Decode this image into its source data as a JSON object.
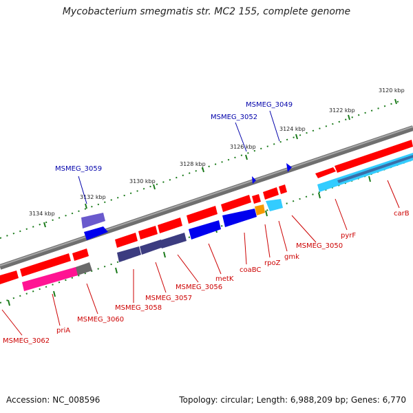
{
  "title": "Mycobacterium smegmatis str. MC2 155, complete genome",
  "footer": {
    "accession": "Accession: NC_008596",
    "stats": "Topology: circular; Length: 6,988,209 bp; Genes: 6,770"
  },
  "colors": {
    "backbone": "#7f7f7f",
    "tick_dots": "#1a7a1a",
    "gene_red": "#ff0000",
    "gene_blue": "#0000ee",
    "gene_navy": "#3c3c80",
    "gene_cyan": "#33ccff",
    "gene_orange": "#f59a00",
    "gene_pink": "#ff1493",
    "gene_gray": "#6a6a6a",
    "label_red": "#cc0000",
    "label_blue": "#0000aa"
  },
  "kbp_ticks": [
    "3120 kbp",
    "3122 kbp",
    "3124 kbp",
    "3126 kbp",
    "3128 kbp",
    "3130 kbp",
    "3132 kbp",
    "3134 kbp"
  ],
  "outer_labels": [
    "MSMEG_3049",
    "MSMEG_3052",
    "MSMEG_3059"
  ],
  "inner_labels": [
    "carB",
    "pyrF",
    "MSMEG_3050",
    "gmk",
    "rpoZ",
    "coaBC",
    "metK",
    "MSMEG_3056",
    "MSMEG_3057",
    "MSMEG_3058",
    "MSMEG_3060",
    "priA",
    "MSMEG_3062"
  ]
}
